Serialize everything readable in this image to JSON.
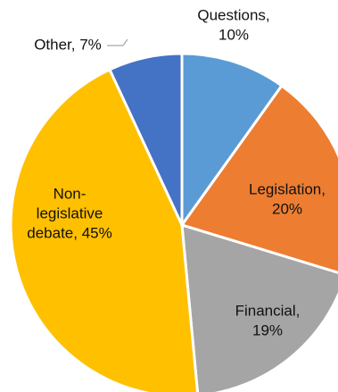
{
  "chart_data": {
    "type": "pie",
    "title": "",
    "slices": [
      {
        "label": "Questions",
        "value": 10,
        "color": "#5B9BD5",
        "text_lines": [
          "Questions,",
          "10%"
        ]
      },
      {
        "label": "Legislation",
        "value": 20,
        "color": "#ED7D31",
        "text_lines": [
          "Legislation,",
          "20%"
        ]
      },
      {
        "label": "Financial",
        "value": 19,
        "color": "#A5A5A5",
        "text_lines": [
          "Financial,",
          "19%"
        ]
      },
      {
        "label": "Non-legislative debate",
        "value": 45,
        "color": "#FFC000",
        "text_lines": [
          "Non-",
          "legislative",
          "debate, 45%"
        ]
      },
      {
        "label": "Other",
        "value": 7,
        "color": "#4472C4",
        "text_lines": [
          "Other, 7%"
        ]
      }
    ],
    "start_angle_deg": 0,
    "direction": "clockwise",
    "legend": "none",
    "label_style": "category, percent"
  }
}
